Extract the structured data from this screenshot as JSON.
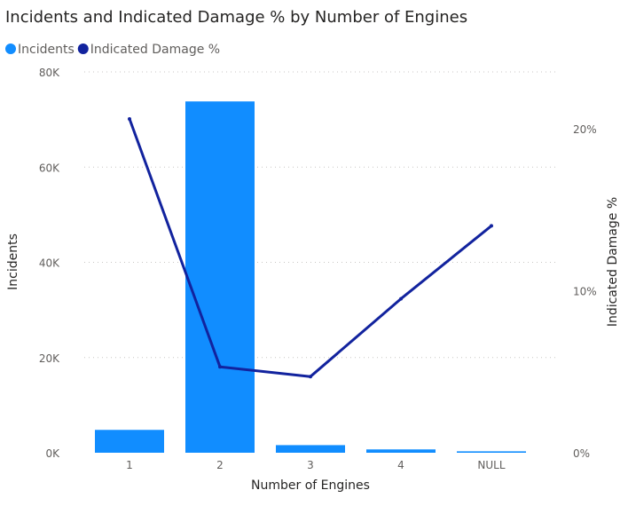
{
  "chart_data": {
    "type": "bar",
    "title": "Incidents and Indicated Damage % by Number of Engines",
    "categories": [
      "1",
      "2",
      "3",
      "4",
      "NULL"
    ],
    "series": [
      {
        "name": "Incidents",
        "type": "bar",
        "axis": "left",
        "color": "#118DFF",
        "values": [
          4800,
          73800,
          1600,
          700,
          300
        ]
      },
      {
        "name": "Indicated Damage %",
        "type": "line",
        "axis": "right",
        "color": "#12239E",
        "values": [
          0.206,
          0.053,
          0.047,
          0.095,
          0.14
        ]
      }
    ],
    "xlabel": "Number of Engines",
    "ylabel": "Incidents",
    "y2label": "Indicated Damage %",
    "ylim": [
      0,
      80000
    ],
    "y2lim": [
      0,
      0.235
    ],
    "yticks": [
      {
        "value": 0,
        "label": "0K"
      },
      {
        "value": 20000,
        "label": "20K"
      },
      {
        "value": 40000,
        "label": "40K"
      },
      {
        "value": 60000,
        "label": "60K"
      },
      {
        "value": 80000,
        "label": "80K"
      }
    ],
    "y2ticks": [
      {
        "value": 0,
        "label": "0%"
      },
      {
        "value": 0.1,
        "label": "10%"
      },
      {
        "value": 0.2,
        "label": "20%"
      }
    ],
    "grid": true,
    "legend_position": "top-left"
  }
}
